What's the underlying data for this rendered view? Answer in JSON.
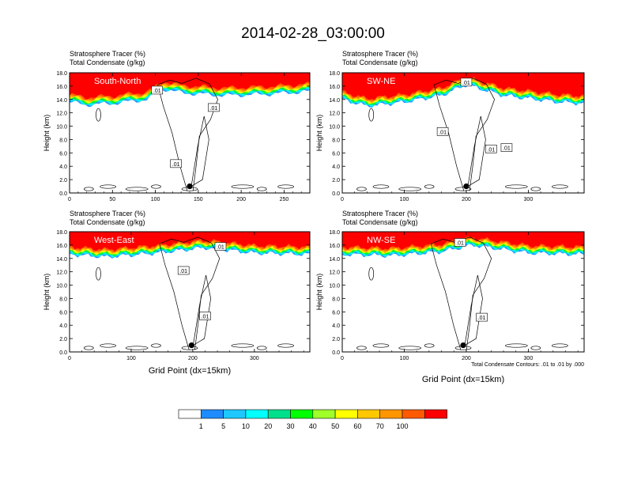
{
  "figure": {
    "title": "2014-02-28_03:00:00",
    "contour_note": "Total Condensate Contours: .01 to .01 by .000"
  },
  "colorbar": {
    "colors": [
      "#ffffff",
      "#1e8cff",
      "#1ec8ff",
      "#00ffff",
      "#00e08c",
      "#00ff00",
      "#a0ff28",
      "#ffff00",
      "#ffc800",
      "#ff9600",
      "#ff5a00",
      "#ff0000"
    ],
    "labels": [
      "1",
      "5",
      "10",
      "20",
      "30",
      "40",
      "50",
      "60",
      "70",
      "100"
    ]
  },
  "chart_data": [
    {
      "type": "heatmap",
      "panel_label": "South-North",
      "header_line1": "Stratosphere Tracer   (%)",
      "header_line2": "Total Condensate   (g/kg)",
      "ylabel": "Height (km)",
      "xlabel": "",
      "xlim": [
        0,
        280
      ],
      "ylim": [
        0,
        18
      ],
      "xticks": [
        "0",
        "50",
        "100",
        "150",
        "200",
        "250"
      ],
      "xtick_values": [
        0,
        50,
        100,
        150,
        200,
        250
      ],
      "yticks": [
        "0.0",
        "2.0",
        "4.0",
        "6.0",
        "8.0",
        "10.0",
        "12.0",
        "14.0",
        "16.0",
        "18.0"
      ],
      "tracer_bottom_km": [
        {
          "x": 0,
          "y": 13.6
        },
        {
          "x": 20,
          "y": 13.2
        },
        {
          "x": 50,
          "y": 13.4
        },
        {
          "x": 90,
          "y": 14.0
        },
        {
          "x": 110,
          "y": 15.6
        },
        {
          "x": 130,
          "y": 15.0
        },
        {
          "x": 180,
          "y": 14.6
        },
        {
          "x": 230,
          "y": 14.8
        },
        {
          "x": 280,
          "y": 15.2
        }
      ],
      "contour_labels": [
        {
          "text": ".01",
          "x": 102,
          "y": 15.4
        },
        {
          "text": ".01",
          "x": 168,
          "y": 12.8
        },
        {
          "text": ".01",
          "x": 124,
          "y": 4.4
        }
      ],
      "marker": {
        "x": 140,
        "y": 1.0
      }
    },
    {
      "type": "heatmap",
      "panel_label": "SW-NE",
      "header_line1": "Stratosphere Tracer   (%)",
      "header_line2": "Total Condensate   (g/kg)",
      "ylabel": "Height (km)",
      "xlabel": "",
      "xlim": [
        0,
        390
      ],
      "ylim": [
        0,
        18
      ],
      "xticks": [
        "0",
        "100",
        "200",
        "300"
      ],
      "xtick_values": [
        0,
        100,
        200,
        300
      ],
      "yticks": [
        "0.0",
        "2.0",
        "4.0",
        "6.0",
        "8.0",
        "10.0",
        "12.0",
        "14.0",
        "16.0",
        "18.0"
      ],
      "tracer_bottom_km": [
        {
          "x": 0,
          "y": 14.0
        },
        {
          "x": 40,
          "y": 13.0
        },
        {
          "x": 100,
          "y": 13.6
        },
        {
          "x": 160,
          "y": 14.6
        },
        {
          "x": 200,
          "y": 16.2
        },
        {
          "x": 260,
          "y": 14.6
        },
        {
          "x": 350,
          "y": 13.6
        },
        {
          "x": 390,
          "y": 13.4
        }
      ],
      "contour_labels": [
        {
          "text": ".01",
          "x": 200,
          "y": 16.6
        },
        {
          "text": ".01",
          "x": 162,
          "y": 9.2
        },
        {
          "text": ".01",
          "x": 240,
          "y": 6.6
        },
        {
          "text": ".01",
          "x": 265,
          "y": 6.8
        }
      ],
      "marker": {
        "x": 200,
        "y": 1.0
      }
    },
    {
      "type": "heatmap",
      "panel_label": "West-East",
      "header_line1": "Stratosphere Tracer   (%)",
      "header_line2": "Total Condensate   (g/kg)",
      "ylabel": "Height (km)",
      "xlabel": "Grid Point (dx=15km)",
      "xlim": [
        0,
        390
      ],
      "ylim": [
        0,
        18
      ],
      "xticks": [
        "0",
        "100",
        "200",
        "300"
      ],
      "xtick_values": [
        0,
        100,
        200,
        300
      ],
      "yticks": [
        "0.0",
        "2.0",
        "4.0",
        "6.0",
        "8.0",
        "10.0",
        "12.0",
        "14.0",
        "16.0",
        "18.0"
      ],
      "tracer_bottom_km": [
        {
          "x": 0,
          "y": 14.6
        },
        {
          "x": 60,
          "y": 14.2
        },
        {
          "x": 140,
          "y": 14.8
        },
        {
          "x": 220,
          "y": 15.6
        },
        {
          "x": 300,
          "y": 14.8
        },
        {
          "x": 390,
          "y": 14.6
        }
      ],
      "contour_labels": [
        {
          "text": ".01",
          "x": 245,
          "y": 15.8
        },
        {
          "text": ".01",
          "x": 185,
          "y": 12.2
        },
        {
          "text": ".01",
          "x": 220,
          "y": 5.4
        }
      ],
      "marker": {
        "x": 198,
        "y": 1.0
      }
    },
    {
      "type": "heatmap",
      "panel_label": "NW-SE",
      "header_line1": "Stratosphere Tracer   (%)",
      "header_line2": "Total Condensate   (g/kg)",
      "ylabel": "Height (km)",
      "xlabel": "Grid Point (dx=15km)",
      "xlim": [
        0,
        390
      ],
      "ylim": [
        0,
        18
      ],
      "xticks": [
        "0",
        "100",
        "200",
        "300"
      ],
      "xtick_values": [
        0,
        100,
        200,
        300
      ],
      "yticks": [
        "0.0",
        "2.0",
        "4.0",
        "6.0",
        "8.0",
        "10.0",
        "12.0",
        "14.0",
        "16.0",
        "18.0"
      ],
      "tracer_bottom_km": [
        {
          "x": 0,
          "y": 14.6
        },
        {
          "x": 80,
          "y": 14.4
        },
        {
          "x": 160,
          "y": 15.0
        },
        {
          "x": 210,
          "y": 16.0
        },
        {
          "x": 300,
          "y": 14.8
        },
        {
          "x": 390,
          "y": 14.6
        }
      ],
      "contour_labels": [
        {
          "text": ".01",
          "x": 190,
          "y": 16.4
        },
        {
          "text": ".01",
          "x": 225,
          "y": 5.2
        }
      ],
      "marker": {
        "x": 195,
        "y": 1.0
      }
    }
  ]
}
